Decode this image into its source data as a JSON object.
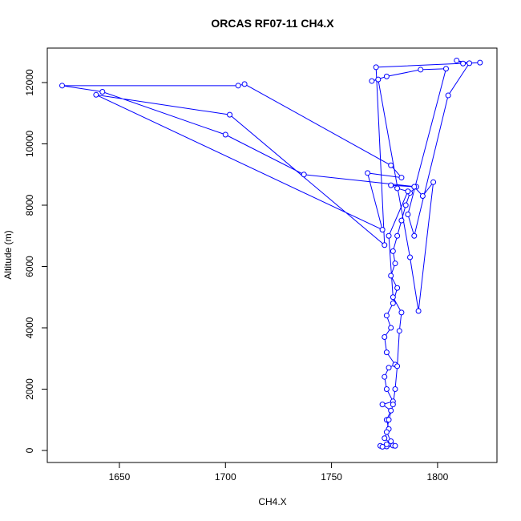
{
  "chart_data": {
    "type": "line-scatter",
    "title": "ORCAS RF07-11 CH4.X",
    "x_label": "CH4.X",
    "y_label": "Altitude (m)",
    "color": "#0000ff",
    "xlim": [
      1616,
      1828
    ],
    "ylim": [
      -392,
      13124
    ],
    "xticks": [
      1650,
      1700,
      1750,
      1800
    ],
    "yticks": [
      0,
      2000,
      4000,
      6000,
      8000,
      10000,
      12000
    ],
    "x": [
      1773,
      1776,
      1779,
      1775,
      1777,
      1776,
      1778,
      1774,
      1779,
      1776,
      1775,
      1777,
      1780,
      1776,
      1775,
      1778,
      1776,
      1779,
      1781,
      1778,
      1780,
      1779,
      1781,
      1783,
      1785,
      1787,
      1790,
      1737,
      1700,
      1642,
      1623,
      1706,
      1709,
      1778,
      1783,
      1767,
      1774,
      1639,
      1702,
      1775,
      1771,
      1820,
      1812,
      1809,
      1815,
      1805,
      1789,
      1786,
      1804,
      1792,
      1776,
      1769,
      1772,
      1787,
      1791,
      1798,
      1793,
      1789,
      1778,
      1781,
      1786,
      1777,
      1779,
      1783,
      1782,
      1781,
      1780,
      1779,
      1777,
      1776,
      1778,
      1780,
      1774,
      1776
    ],
    "y": [
      150,
      130,
      160,
      400,
      700,
      1000,
      1300,
      1500,
      1600,
      2000,
      2400,
      2700,
      2800,
      3200,
      3700,
      4000,
      4400,
      4800,
      5300,
      5700,
      6100,
      6500,
      7000,
      7500,
      8000,
      8400,
      8600,
      9000,
      10300,
      11700,
      11900,
      11900,
      11950,
      9300,
      8900,
      9050,
      7200,
      11600,
      10950,
      6700,
      12500,
      12650,
      12620,
      12720,
      12630,
      11580,
      7000,
      7700,
      12450,
      12420,
      12200,
      12050,
      12100,
      6300,
      4550,
      8750,
      8300,
      8600,
      8650,
      8550,
      8450,
      7000,
      5000,
      4500,
      3900,
      2750,
      2000,
      1500,
      1000,
      600,
      300,
      150,
      120,
      200
    ]
  }
}
